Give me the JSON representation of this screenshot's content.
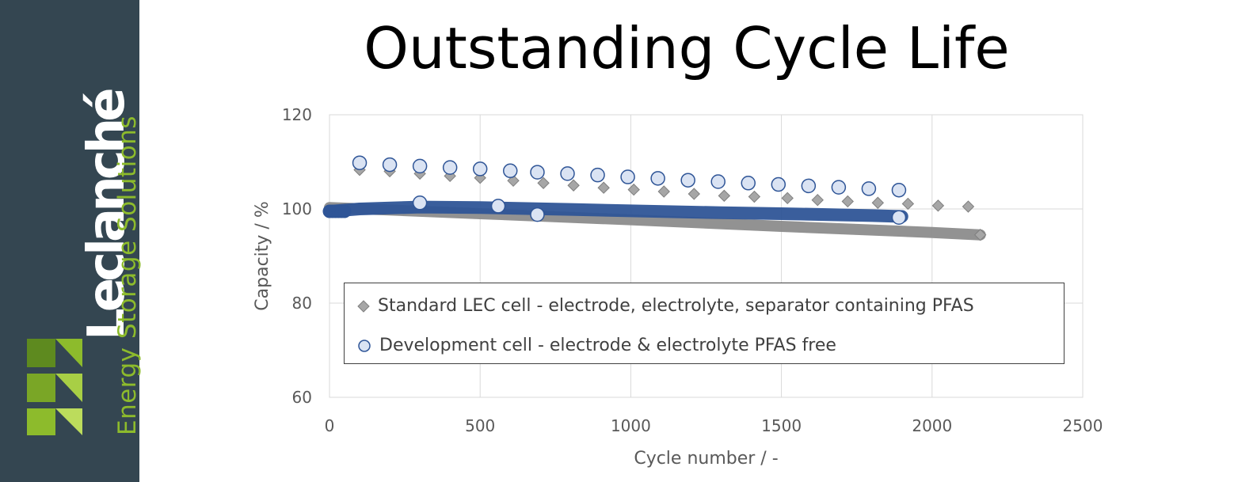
{
  "page": {
    "title": "Outstanding Cycle Life"
  },
  "brand": {
    "name": "Leclanché",
    "tagline": "Energy Storage Solutions",
    "colors": {
      "sidebar": "#344651",
      "accent": "#8dbb2c",
      "text": "#ffffff"
    }
  },
  "chart_data": {
    "type": "scatter",
    "title": "",
    "xlabel": "Cycle number / -",
    "ylabel": "Capacity / %",
    "xlim": [
      0,
      2500
    ],
    "ylim": [
      60,
      120
    ],
    "x_ticks": [
      "0",
      "500",
      "1000",
      "1500",
      "2000",
      "2500"
    ],
    "y_ticks": [
      "60",
      "80",
      "100",
      "120"
    ],
    "grid": true,
    "legend_position": "bottom-center",
    "series": [
      {
        "name": "Standard LEC cell - electrode, electrolyte, separator containing PFAS",
        "marker": "diamond",
        "color": "#8c8c8c",
        "dense_trend": [
          [
            0,
            100.3
          ],
          [
            500,
            99.0
          ],
          [
            1000,
            97.7
          ],
          [
            1500,
            96.3
          ],
          [
            2000,
            95.0
          ],
          [
            2160,
            94.5
          ]
        ],
        "checkup_points": [
          {
            "x": 100,
            "y": 108.3
          },
          {
            "x": 200,
            "y": 108.0
          },
          {
            "x": 300,
            "y": 107.5
          },
          {
            "x": 400,
            "y": 107.0
          },
          {
            "x": 500,
            "y": 106.6
          },
          {
            "x": 610,
            "y": 106.0
          },
          {
            "x": 710,
            "y": 105.5
          },
          {
            "x": 810,
            "y": 105.0
          },
          {
            "x": 910,
            "y": 104.5
          },
          {
            "x": 1010,
            "y": 104.1
          },
          {
            "x": 1110,
            "y": 103.7
          },
          {
            "x": 1210,
            "y": 103.2
          },
          {
            "x": 1310,
            "y": 102.8
          },
          {
            "x": 1410,
            "y": 102.6
          },
          {
            "x": 1520,
            "y": 102.3
          },
          {
            "x": 1620,
            "y": 101.9
          },
          {
            "x": 1720,
            "y": 101.6
          },
          {
            "x": 1820,
            "y": 101.3
          },
          {
            "x": 1920,
            "y": 101.1
          },
          {
            "x": 2020,
            "y": 100.7
          },
          {
            "x": 2120,
            "y": 100.5
          },
          {
            "x": 2160,
            "y": 94.5
          }
        ]
      },
      {
        "name": "Development cell - electrode & electrolyte PFAS free",
        "marker": "circle",
        "color": "#2f5597",
        "dense_trend": [
          [
            0,
            99.5
          ],
          [
            100,
            100.0
          ],
          [
            300,
            100.4
          ],
          [
            500,
            100.3
          ],
          [
            800,
            99.9
          ],
          [
            1000,
            99.6
          ],
          [
            1300,
            99.2
          ],
          [
            1500,
            99.0
          ],
          [
            1800,
            98.6
          ],
          [
            1900,
            98.4
          ]
        ],
        "checkup_points": [
          {
            "x": 100,
            "y": 109.8
          },
          {
            "x": 200,
            "y": 109.4
          },
          {
            "x": 300,
            "y": 109.1
          },
          {
            "x": 400,
            "y": 108.8
          },
          {
            "x": 500,
            "y": 108.5
          },
          {
            "x": 600,
            "y": 108.1
          },
          {
            "x": 690,
            "y": 107.8
          },
          {
            "x": 790,
            "y": 107.5
          },
          {
            "x": 890,
            "y": 107.2
          },
          {
            "x": 990,
            "y": 106.8
          },
          {
            "x": 1090,
            "y": 106.5
          },
          {
            "x": 1190,
            "y": 106.1
          },
          {
            "x": 1290,
            "y": 105.8
          },
          {
            "x": 1390,
            "y": 105.5
          },
          {
            "x": 1490,
            "y": 105.2
          },
          {
            "x": 1590,
            "y": 104.9
          },
          {
            "x": 1690,
            "y": 104.6
          },
          {
            "x": 1790,
            "y": 104.3
          },
          {
            "x": 1890,
            "y": 104.0
          },
          {
            "x": 1890,
            "y": 98.2
          },
          {
            "x": 300,
            "y": 101.3
          },
          {
            "x": 560,
            "y": 100.6
          },
          {
            "x": 690,
            "y": 98.8
          }
        ]
      }
    ]
  }
}
